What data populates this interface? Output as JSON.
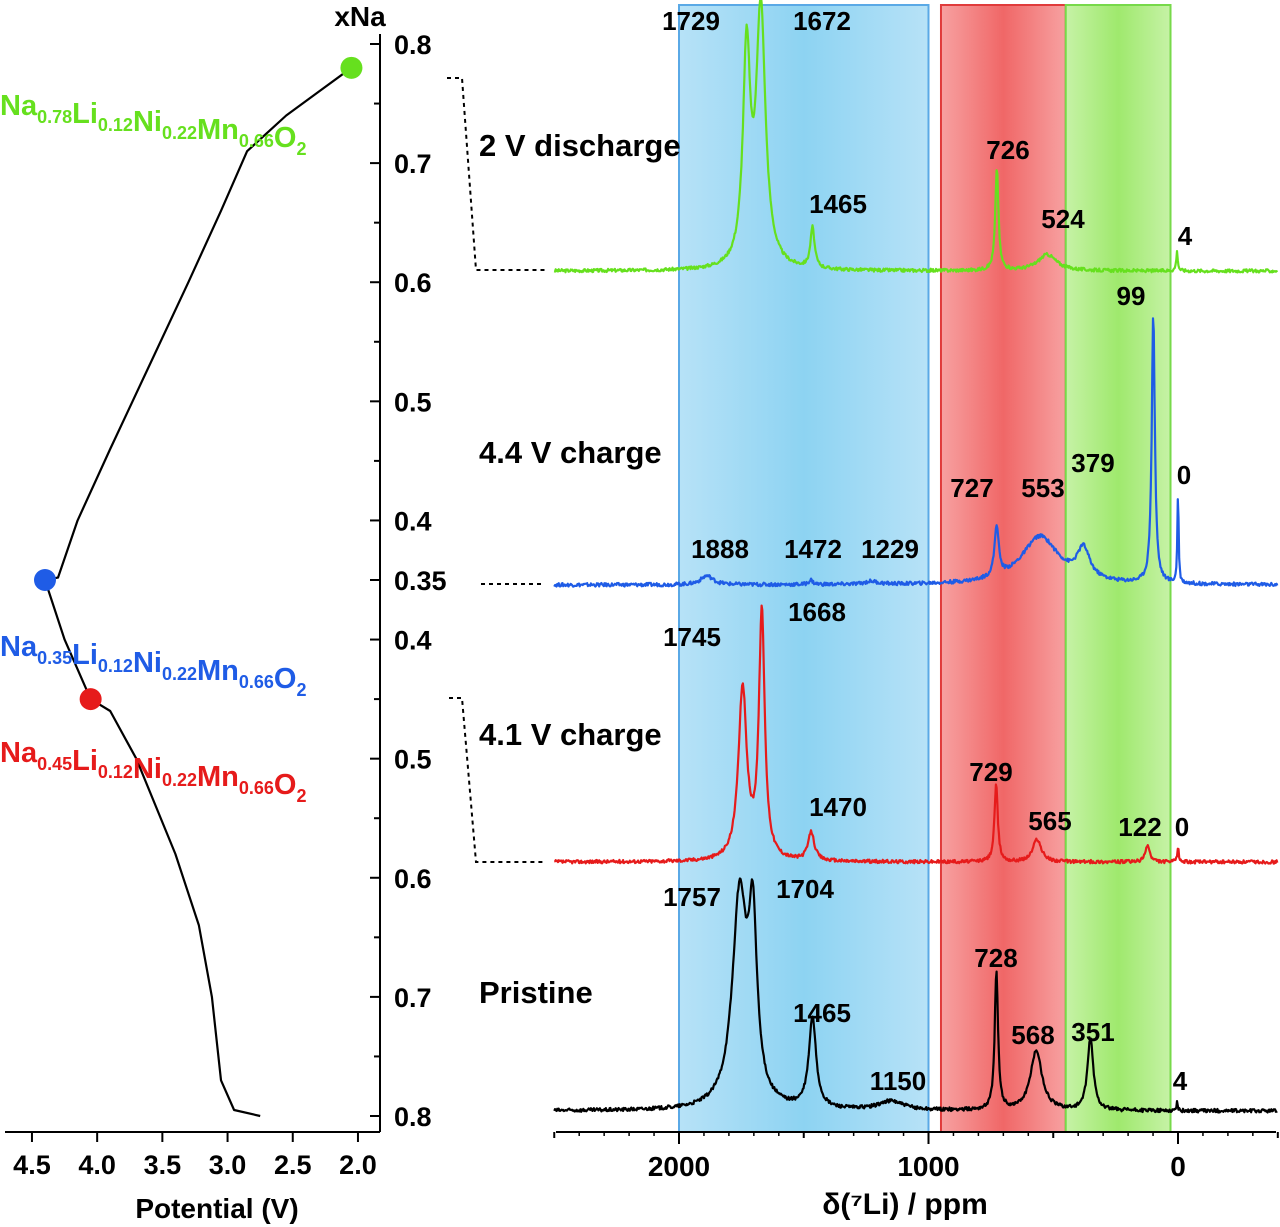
{
  "left_panel": {
    "x_axis": {
      "label": "Potential (V)",
      "range": [
        4.5,
        2.0
      ],
      "tick_labels": [
        "4.5",
        "4.0",
        "3.5",
        "3.0",
        "2.5",
        "2.0"
      ],
      "ticks": [
        4.5,
        4.0,
        3.5,
        3.0,
        2.5,
        2.0
      ]
    },
    "y_axis": {
      "title": "xNa",
      "charge_tick_labels": [
        "0.8",
        "0.7",
        "0.6",
        "0.5",
        "0.4",
        "0.35"
      ],
      "charge_ticks": [
        0.8,
        0.7,
        0.6,
        0.5,
        0.4,
        0.35
      ],
      "discharge_tick_labels": [
        "0.4",
        "0.5",
        "0.6",
        "0.7",
        "0.8"
      ],
      "discharge_ticks": [
        0.4,
        0.5,
        0.6,
        0.7,
        0.8
      ]
    },
    "compositions": [
      {
        "na": "0.78",
        "li": "0.12",
        "ni": "0.22",
        "mn": "0.66",
        "color": "#66e01e"
      },
      {
        "na": "0.35",
        "li": "0.12",
        "ni": "0.22",
        "mn": "0.66",
        "color": "#1f5ce6"
      },
      {
        "na": "0.45",
        "li": "0.12",
        "ni": "0.22",
        "mn": "0.66",
        "color": "#e61b1b"
      }
    ],
    "markers": [
      {
        "name": "2 V discharge point",
        "potential": 2.05,
        "xNa": 0.78,
        "branch": "discharge",
        "color": "#66e01e"
      },
      {
        "name": "4.4 V charge point",
        "potential": 4.4,
        "xNa": 0.35,
        "branch": "charge",
        "color": "#1f5ce6"
      },
      {
        "name": "4.1 V charge point",
        "potential": 4.05,
        "xNa": 0.45,
        "branch": "charge",
        "color": "#e61b1b"
      }
    ],
    "charge_curve": [
      [
        2.75,
        0.8
      ],
      [
        2.95,
        0.795
      ],
      [
        3.05,
        0.77
      ],
      [
        3.12,
        0.7
      ],
      [
        3.22,
        0.64
      ],
      [
        3.4,
        0.58
      ],
      [
        3.7,
        0.5
      ],
      [
        3.9,
        0.46
      ],
      [
        4.05,
        0.45
      ],
      [
        4.25,
        0.4
      ],
      [
        4.4,
        0.35
      ]
    ],
    "discharge_curve": [
      [
        4.4,
        0.35
      ],
      [
        4.3,
        0.352
      ],
      [
        4.15,
        0.4
      ],
      [
        3.9,
        0.46
      ],
      [
        3.6,
        0.53
      ],
      [
        3.3,
        0.6
      ],
      [
        3.05,
        0.66
      ],
      [
        2.85,
        0.71
      ],
      [
        2.55,
        0.74
      ],
      [
        2.3,
        0.76
      ],
      [
        2.05,
        0.78
      ]
    ]
  },
  "right_panel": {
    "colors": {
      "blue_band": "#b7e2f7",
      "blue_band_center": "#8dd3f2",
      "blue_band_border": "#5aa9e6",
      "red_band": "#f7a1a1",
      "red_band_center": "#f06767",
      "red_band_border": "#e03b3b",
      "green_band": "#c6f2a6",
      "green_band_center": "#9fe96d",
      "green_band_border": "#77d94a"
    },
    "bands": [
      {
        "name": "blue-band",
        "from": 2000,
        "to": 1000
      },
      {
        "name": "red-band",
        "from": 950,
        "to": 450
      },
      {
        "name": "green-band",
        "from": 450,
        "to": 30
      }
    ]
  },
  "chart_data": [
    {
      "type": "line",
      "panel": "left",
      "xlabel": "Potential (V)",
      "ylabel": "xNa",
      "xlim": [
        4.5,
        2.0
      ],
      "series": [
        {
          "values": [
            [
              2.75,
              0.8
            ],
            [
              2.95,
              0.795
            ],
            [
              3.05,
              0.77
            ],
            [
              3.12,
              0.7
            ],
            [
              3.22,
              0.64
            ],
            [
              3.4,
              0.58
            ],
            [
              3.7,
              0.5
            ],
            [
              3.9,
              0.46
            ],
            [
              4.05,
              0.45
            ],
            [
              4.25,
              0.4
            ],
            [
              4.4,
              0.35
            ]
          ]
        },
        {
          "values": [
            [
              4.4,
              0.35
            ],
            [
              4.3,
              0.352
            ],
            [
              4.15,
              0.4
            ],
            [
              3.9,
              0.46
            ],
            [
              3.6,
              0.53
            ],
            [
              3.3,
              0.6
            ],
            [
              3.05,
              0.66
            ],
            [
              2.85,
              0.71
            ],
            [
              2.55,
              0.74
            ],
            [
              2.3,
              0.76
            ],
            [
              2.05,
              0.78
            ]
          ]
        }
      ]
    },
    {
      "type": "line",
      "panel": "right",
      "xlabel": "δ(⁷Li) / ppm",
      "xlim": [
        2500,
        -400
      ],
      "x_ticks": [
        2000,
        1000,
        0
      ],
      "x_tick_labels": [
        "2000",
        "1000",
        "0"
      ],
      "series": [
        {
          "name": "2 V discharge",
          "color": "#66e01e",
          "baseline_row": 0,
          "peaks": [
            {
              "position": 1729,
              "height": 0.78,
              "width": 35,
              "label": "1729"
            },
            {
              "position": 1672,
              "height": 0.95,
              "width": 45,
              "label": "1672"
            },
            {
              "position": 1465,
              "height": 0.15,
              "width": 20,
              "label": "1465"
            },
            {
              "position": 726,
              "height": 0.38,
              "width": 15,
              "label": "726"
            },
            {
              "position": 524,
              "height": 0.06,
              "width": 90,
              "label": "524"
            },
            {
              "position": 4,
              "height": 0.07,
              "width": 8,
              "label": "4"
            }
          ]
        },
        {
          "name": "4.4 V charge",
          "color": "#1f5ce6",
          "baseline_row": 1,
          "peaks": [
            {
              "position": 1888,
              "height": 0.03,
              "width": 60,
              "label": "1888"
            },
            {
              "position": 1472,
              "height": 0.015,
              "width": 20,
              "label": "1472"
            },
            {
              "position": 1229,
              "height": 0.01,
              "width": 60,
              "label": "1229"
            },
            {
              "position": 727,
              "height": 0.17,
              "width": 20,
              "label": "727"
            },
            {
              "position": 553,
              "height": 0.16,
              "width": 180,
              "label": "553"
            },
            {
              "position": 379,
              "height": 0.1,
              "width": 60,
              "label": "379"
            },
            {
              "position": 99,
              "height": 0.9,
              "width": 15,
              "label": "99"
            },
            {
              "position": 0,
              "height": 0.31,
              "width": 6,
              "label": "0"
            }
          ]
        },
        {
          "name": "4.1 V charge",
          "color": "#e61b1b",
          "baseline_row": 2,
          "peaks": [
            {
              "position": 1745,
              "height": 0.6,
              "width": 40,
              "label": "1745"
            },
            {
              "position": 1668,
              "height": 0.86,
              "width": 28,
              "label": "1668"
            },
            {
              "position": 1470,
              "height": 0.1,
              "width": 30,
              "label": "1470"
            },
            {
              "position": 729,
              "height": 0.27,
              "width": 16,
              "label": "729"
            },
            {
              "position": 565,
              "height": 0.08,
              "width": 40,
              "label": "565"
            },
            {
              "position": 122,
              "height": 0.06,
              "width": 20,
              "label": "122"
            },
            {
              "position": 0,
              "height": 0.05,
              "width": 8,
              "label": "0"
            }
          ]
        },
        {
          "name": "Pristine",
          "color": "#000000",
          "baseline_row": 3,
          "peaks": [
            {
              "position": 1757,
              "height": 0.7,
              "width": 70,
              "label": "1757"
            },
            {
              "position": 1704,
              "height": 0.55,
              "width": 40,
              "label": "1704"
            },
            {
              "position": 1465,
              "height": 0.3,
              "width": 35,
              "label": "1465"
            },
            {
              "position": 1150,
              "height": 0.03,
              "width": 120,
              "label": "1150"
            },
            {
              "position": 728,
              "height": 0.46,
              "width": 16,
              "label": "728"
            },
            {
              "position": 568,
              "height": 0.2,
              "width": 55,
              "label": "568"
            },
            {
              "position": 351,
              "height": 0.24,
              "width": 28,
              "label": "351"
            },
            {
              "position": 4,
              "height": 0.03,
              "width": 6,
              "label": "4"
            }
          ]
        }
      ]
    }
  ]
}
